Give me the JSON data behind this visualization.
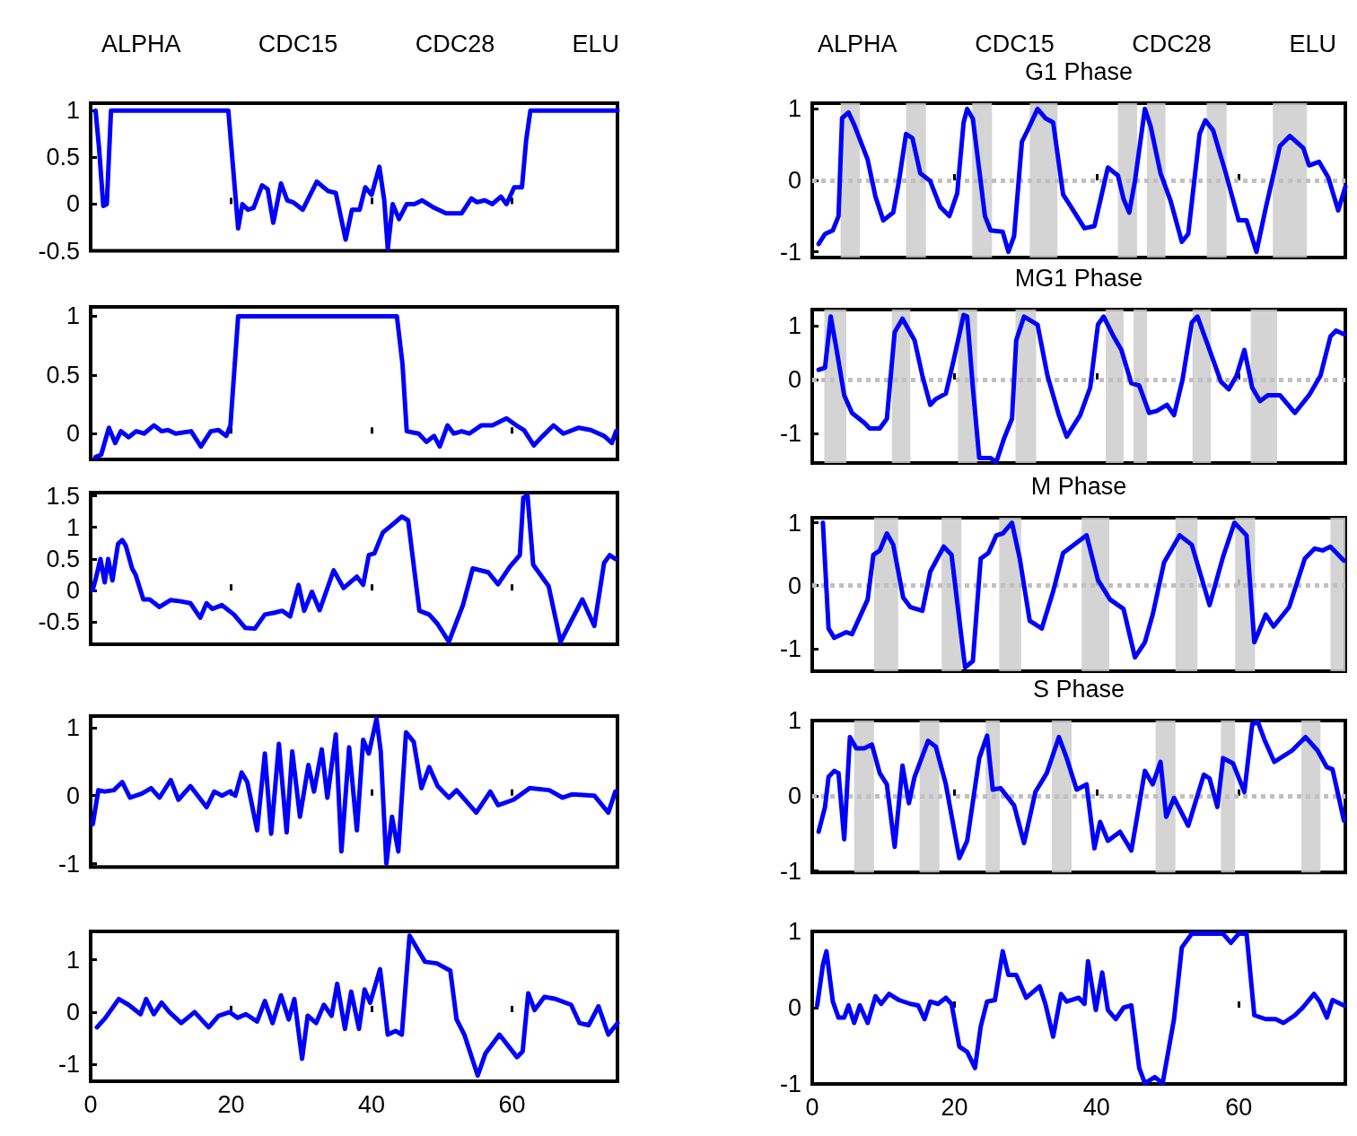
{
  "chart_data": [
    {
      "type": "line",
      "annotations": [
        "ALPHA",
        "CDC15",
        "CDC28",
        "ELU"
      ],
      "xlim": [
        0,
        75
      ],
      "xticks": [
        0,
        20,
        40,
        60
      ],
      "ylim": [
        -0.5,
        1.08
      ],
      "yticks": [
        -0.5,
        0,
        0.5,
        1
      ],
      "tick_labels": "y",
      "series": [
        {
          "color": "#0000ff",
          "x": [
            0.7,
            1.2,
            1.8,
            2.3,
            2.9,
            19.6,
            21.0,
            21.6,
            22.4,
            23.2,
            24.4,
            25.2,
            26.0,
            27.1,
            28.0,
            28.8,
            30.2,
            32.2,
            33.8,
            34.9,
            36.3,
            37.2,
            38.3,
            39.1,
            40.0,
            41.1,
            41.8,
            42.3,
            43.0,
            43.9,
            45.0,
            46.1,
            47.2,
            48.9,
            50.6,
            52.8,
            54.2,
            55.0,
            56.1,
            57.2,
            58.4,
            59.2,
            60.3,
            61.4,
            62.0,
            62.6,
            75
          ],
          "values": [
            1,
            0.6,
            -0.02,
            0,
            1,
            1,
            -0.26,
            0,
            -0.06,
            -0.04,
            0.2,
            0.16,
            -0.2,
            0.22,
            0.04,
            0.02,
            -0.06,
            0.24,
            0.14,
            0.12,
            -0.38,
            -0.06,
            -0.06,
            0.18,
            0.1,
            0.4,
            0.04,
            -0.48,
            0,
            -0.16,
            0,
            0,
            0.04,
            -0.04,
            -0.1,
            -0.1,
            0.06,
            0.02,
            0.04,
            0,
            0.08,
            0,
            0.18,
            0.18,
            0.68,
            1,
            1
          ]
        }
      ]
    },
    {
      "type": "line",
      "title": "G1 Phase",
      "annotations": [
        "ALPHA",
        "CDC15",
        "CDC28",
        "ELU"
      ],
      "xlim": [
        0,
        75
      ],
      "xticks": [
        0,
        20,
        40,
        60
      ],
      "ylim": [
        -1.08,
        1.08
      ],
      "yticks": [
        -1,
        0,
        1
      ],
      "tick_labels": "y",
      "ref_lines": [
        {
          "axis": "y",
          "value": 0,
          "color": "#c0c0c0",
          "line_style": "dotted"
        }
      ],
      "bands": [
        {
          "axis": "x",
          "from": 4,
          "to": 6.7,
          "color": "#cccccc"
        },
        {
          "axis": "x",
          "from": 13.2,
          "to": 16,
          "color": "#cccccc"
        },
        {
          "axis": "x",
          "from": 22.5,
          "to": 25.3,
          "color": "#cccccc"
        },
        {
          "axis": "x",
          "from": 30.6,
          "to": 34.5,
          "color": "#cccccc"
        },
        {
          "axis": "x",
          "from": 43,
          "to": 45.7,
          "color": "#cccccc"
        },
        {
          "axis": "x",
          "from": 47.1,
          "to": 49.7,
          "color": "#cccccc"
        },
        {
          "axis": "x",
          "from": 55.5,
          "to": 58.3,
          "color": "#cccccc"
        },
        {
          "axis": "x",
          "from": 64.8,
          "to": 69.6,
          "color": "#cccccc"
        }
      ],
      "series": [
        {
          "color": "#0000ff",
          "x": [
            0.9,
            1.8,
            2.9,
            3.7,
            4.2,
            5.1,
            5.9,
            7.8,
            8.9,
            10.0,
            11.4,
            12.2,
            13.2,
            14.1,
            15.2,
            16.6,
            18.0,
            19.3,
            20.4,
            21.3,
            21.8,
            22.6,
            24.3,
            25.1,
            26.8,
            27.6,
            28.4,
            29.5,
            30.3,
            31.7,
            32.8,
            33.9,
            35.3,
            36.4,
            38.3,
            39.7,
            41.6,
            43.0,
            43.8,
            44.6,
            45.4,
            46.8,
            47.6,
            49.0,
            50.4,
            52.0,
            52.9,
            54.5,
            55.3,
            56.4,
            58.1,
            60.0,
            61.1,
            62.5,
            63.8,
            65.8,
            67.2,
            69.1,
            69.9,
            71.3,
            72.6,
            74.0,
            75
          ],
          "values": [
            -0.89,
            -0.75,
            -0.7,
            -0.5,
            0.87,
            0.95,
            0.78,
            0.29,
            -0.23,
            -0.56,
            -0.45,
            -0.01,
            0.65,
            0.59,
            0.1,
            -0.01,
            -0.37,
            -0.5,
            -0.18,
            0.81,
            1,
            0.86,
            -0.5,
            -0.7,
            -0.72,
            -1,
            -0.78,
            0.54,
            0.7,
            1,
            0.87,
            0.81,
            -0.2,
            -0.37,
            -0.67,
            -0.64,
            0.18,
            0.07,
            -0.26,
            -0.45,
            -0.01,
            1,
            0.76,
            0.1,
            -0.28,
            -0.86,
            -0.75,
            0.65,
            0.84,
            0.7,
            0.13,
            -0.56,
            -0.56,
            -1,
            -0.39,
            0.48,
            0.62,
            0.45,
            0.21,
            0.26,
            0.04,
            -0.42,
            -0.09
          ]
        }
      ]
    },
    {
      "type": "line",
      "xlim": [
        0,
        75
      ],
      "xticks": [
        0,
        20,
        40,
        60
      ],
      "ylim": [
        -0.22,
        1.08
      ],
      "yticks": [
        0,
        0.5,
        1
      ],
      "tick_labels": "y",
      "series": [
        {
          "color": "#0000ff",
          "x": [
            0.7,
            1.5,
            2.6,
            3.5,
            4.3,
            5.4,
            6.5,
            7.6,
            9.0,
            10.1,
            11.0,
            12.1,
            14.3,
            15.7,
            17.1,
            18.2,
            19.3,
            19.9,
            21.0,
            43.6,
            44.4,
            45.0,
            46.7,
            47.8,
            48.9,
            49.7,
            50.8,
            51.7,
            52.8,
            53.9,
            55.6,
            57.2,
            59.2,
            60.6,
            61.7,
            63.1,
            64.2,
            65.9,
            67.3,
            69.5,
            71.2,
            73.1,
            74.2,
            74.8
          ],
          "values": [
            -0.2,
            -0.18,
            0.05,
            -0.08,
            0.02,
            -0.03,
            0.02,
            0,
            0.07,
            0.02,
            0.03,
            0,
            0.02,
            -0.11,
            0.02,
            0.03,
            -0.02,
            0.07,
            1,
            1,
            0.59,
            0.02,
            0,
            -0.07,
            -0.02,
            -0.11,
            0.07,
            0,
            0.02,
            0,
            0.07,
            0.07,
            0.13,
            0.07,
            0.03,
            -0.1,
            -0.03,
            0.07,
            0,
            0.05,
            0.03,
            -0.02,
            -0.08,
            0.02
          ]
        }
      ]
    },
    {
      "type": "line",
      "title": "MG1 Phase",
      "xlim": [
        0,
        75
      ],
      "xticks": [
        0,
        20,
        40,
        60
      ],
      "ylim": [
        -1.55,
        1.3
      ],
      "yticks": [
        -1,
        0,
        1
      ],
      "tick_labels": "y",
      "ref_lines": [
        {
          "axis": "y",
          "value": 0,
          "color": "#c0c0c0",
          "line_style": "dotted"
        }
      ],
      "bands": [
        {
          "axis": "x",
          "from": 1.7,
          "to": 4.8,
          "color": "#cccccc"
        },
        {
          "axis": "x",
          "from": 11.2,
          "to": 13.8,
          "color": "#cccccc"
        },
        {
          "axis": "x",
          "from": 20.5,
          "to": 23.2,
          "color": "#cccccc"
        },
        {
          "axis": "x",
          "from": 28.6,
          "to": 31.5,
          "color": "#cccccc"
        },
        {
          "axis": "x",
          "from": 41.3,
          "to": 43.8,
          "color": "#cccccc"
        },
        {
          "axis": "x",
          "from": 45.2,
          "to": 47.1,
          "color": "#cccccc"
        },
        {
          "axis": "x",
          "from": 53.5,
          "to": 56.1,
          "color": "#cccccc"
        },
        {
          "axis": "x",
          "from": 61.7,
          "to": 65.4,
          "color": "#cccccc"
        }
      ],
      "series": [
        {
          "color": "#0000ff",
          "x": [
            0.9,
            1.8,
            2.6,
            3.4,
            4.5,
            5.6,
            7.3,
            8.1,
            9.5,
            10.5,
            11.6,
            12.7,
            14.4,
            15.5,
            16.6,
            17.4,
            18.8,
            19.9,
            21.3,
            21.8,
            22.6,
            23.5,
            25.1,
            25.9,
            27.0,
            28.1,
            28.7,
            29.8,
            31.7,
            33.1,
            34.7,
            35.8,
            37.7,
            39.1,
            40.2,
            41.0,
            42.4,
            43.5,
            44.9,
            46.0,
            47.4,
            48.5,
            49.9,
            50.9,
            52.1,
            53.4,
            54.2,
            55.6,
            57.5,
            58.6,
            59.7,
            60.8,
            61.9,
            63.0,
            64.1,
            65.8,
            67.9,
            69.9,
            71.5,
            72.9,
            73.7,
            74.8
          ],
          "values": [
            0.18,
            0.22,
            1.17,
            0.58,
            -0.29,
            -0.62,
            -0.8,
            -0.91,
            -0.91,
            -0.73,
            0.88,
            1.13,
            0.73,
            0.07,
            -0.47,
            -0.36,
            -0.26,
            0.36,
            1.2,
            1.17,
            -0.15,
            -1.46,
            -1.46,
            -1.53,
            -1.09,
            -0.73,
            0.73,
            1.17,
            1.02,
            0.07,
            -0.66,
            -1.06,
            -0.66,
            -0.15,
            1.02,
            1.17,
            0.8,
            0.55,
            -0.07,
            -0.11,
            -0.62,
            -0.58,
            -0.47,
            -0.66,
            0,
            1.06,
            1.17,
            0.66,
            -0.04,
            -0.18,
            0.07,
            0.55,
            -0.15,
            -0.4,
            -0.29,
            -0.29,
            -0.62,
            -0.29,
            0.07,
            0.8,
            0.91,
            0.84
          ]
        }
      ]
    },
    {
      "type": "line",
      "xlim": [
        0,
        75
      ],
      "xticks": [
        0,
        20,
        40,
        60
      ],
      "ylim": [
        -0.85,
        1.55
      ],
      "yticks": [
        -0.5,
        0,
        0.5,
        1,
        1.5
      ],
      "tick_labels": "y",
      "series": [
        {
          "color": "#0000ff",
          "x": [
            0.3,
            0.8,
            1.4,
            2.0,
            2.5,
            3.1,
            3.9,
            4.5,
            5.0,
            5.9,
            6.4,
            7.5,
            8.4,
            9.8,
            11.4,
            12.8,
            14.2,
            15.6,
            16.5,
            17.3,
            18.7,
            20.4,
            22.0,
            23.4,
            24.8,
            26.2,
            27.3,
            28.4,
            29.6,
            30.4,
            31.5,
            32.6,
            34.6,
            36.0,
            37.9,
            38.8,
            39.6,
            40.4,
            41.6,
            42.7,
            44.3,
            45.2,
            46.8,
            48.2,
            49.4,
            51.0,
            53.0,
            54.4,
            56.6,
            58.0,
            59.7,
            61.1,
            61.6,
            62.2,
            63.0,
            65.2,
            66.9,
            70.0,
            71.7,
            73.1,
            73.9,
            74.7
          ],
          "values": [
            0.01,
            0.22,
            0.5,
            0.13,
            0.5,
            0.16,
            0.74,
            0.8,
            0.71,
            0.35,
            0.25,
            -0.14,
            -0.14,
            -0.26,
            -0.15,
            -0.17,
            -0.2,
            -0.43,
            -0.2,
            -0.29,
            -0.23,
            -0.38,
            -0.59,
            -0.6,
            -0.38,
            -0.35,
            -0.32,
            -0.41,
            0.09,
            -0.32,
            -0.02,
            -0.31,
            0.32,
            0.04,
            0.22,
            0.09,
            0.56,
            0.59,
            0.92,
            1.02,
            1.17,
            1.11,
            -0.32,
            -0.38,
            -0.53,
            -0.81,
            -0.23,
            0.35,
            0.29,
            0.1,
            0.38,
            0.56,
            1.47,
            1.5,
            0.41,
            0.07,
            -0.81,
            -0.14,
            -0.56,
            0.44,
            0.56,
            0.5
          ]
        }
      ]
    },
    {
      "type": "line",
      "title": "M Phase",
      "xlim": [
        0,
        75
      ],
      "xticks": [
        0,
        20,
        40,
        60
      ],
      "ylim": [
        -1.36,
        1.08
      ],
      "yticks": [
        -1,
        0,
        1
      ],
      "tick_labels": "y",
      "ref_lines": [
        {
          "axis": "y",
          "value": 0,
          "color": "#c0c0c0",
          "line_style": "dotted"
        }
      ],
      "bands": [
        {
          "axis": "x",
          "from": 8.7,
          "to": 12.1,
          "color": "#cccccc"
        },
        {
          "axis": "x",
          "from": 18.2,
          "to": 21,
          "color": "#cccccc"
        },
        {
          "axis": "x",
          "from": 26.3,
          "to": 29.4,
          "color": "#cccccc"
        },
        {
          "axis": "x",
          "from": 37.9,
          "to": 41.8,
          "color": "#cccccc"
        },
        {
          "axis": "x",
          "from": 51.1,
          "to": 54.2,
          "color": "#cccccc"
        },
        {
          "axis": "x",
          "from": 59.5,
          "to": 62.3,
          "color": "#cccccc"
        },
        {
          "axis": "x",
          "from": 72.9,
          "to": 75,
          "color": "#cccccc"
        }
      ],
      "series": [
        {
          "color": "#0000ff",
          "x": [
            1.5,
            2.3,
            3.1,
            4.8,
            5.6,
            7.8,
            8.6,
            9.5,
            10.5,
            11.4,
            12.8,
            13.8,
            15.5,
            16.6,
            18.5,
            19.6,
            21.5,
            22.6,
            23.7,
            24.8,
            25.9,
            26.8,
            28.1,
            29.2,
            30.6,
            32.3,
            33.9,
            35.3,
            38.6,
            40.2,
            41.9,
            43.8,
            45.4,
            46.8,
            47.9,
            49.5,
            51.7,
            53.4,
            55.9,
            57.8,
            59.4,
            61.1,
            62.2,
            63.8,
            64.9,
            67.1,
            69.3,
            70.7,
            71.8,
            72.9,
            74.8
          ],
          "values": [
            1,
            -0.68,
            -0.83,
            -0.74,
            -0.77,
            -0.22,
            0.49,
            0.56,
            0.83,
            0.65,
            -0.19,
            -0.34,
            -0.4,
            0.22,
            0.62,
            0.49,
            -1.3,
            -1.2,
            0.43,
            0.52,
            0.8,
            0.83,
            1,
            0.43,
            -0.56,
            -0.68,
            -0.09,
            0.52,
            0.8,
            0.09,
            -0.22,
            -0.37,
            -1.14,
            -0.9,
            -0.46,
            0.37,
            0.8,
            0.65,
            -0.31,
            0.46,
            1,
            0.8,
            -0.9,
            -0.46,
            -0.65,
            -0.34,
            0.43,
            0.59,
            0.56,
            0.62,
            0.4
          ]
        }
      ]
    },
    {
      "type": "line",
      "xlim": [
        0,
        75
      ],
      "xticks": [
        0,
        20,
        40,
        60
      ],
      "ylim": [
        -1.05,
        1.17
      ],
      "yticks": [
        -1,
        0,
        1
      ],
      "tick_labels": "y",
      "series": [
        {
          "color": "#0000ff",
          "x": [
            0.3,
            1.1,
            2.0,
            3.3,
            4.5,
            5.6,
            7.3,
            8.6,
            9.8,
            11.4,
            12.5,
            14.2,
            16.5,
            17.6,
            18.7,
            19.8,
            20.6,
            21.5,
            22.3,
            23.7,
            24.8,
            25.7,
            26.8,
            27.9,
            28.7,
            29.8,
            31.0,
            31.8,
            32.9,
            33.7,
            34.9,
            35.7,
            36.8,
            37.9,
            38.8,
            39.6,
            40.7,
            41.3,
            42.1,
            42.9,
            43.8,
            44.9,
            46.0,
            47.1,
            48.2,
            49.4,
            51.0,
            52.1,
            54.9,
            56.9,
            58.0,
            60.2,
            62.5,
            65.3,
            67.2,
            68.6,
            71.7,
            73.7,
            74.7
          ],
          "values": [
            -0.42,
            0.08,
            0.06,
            0.08,
            0.2,
            -0.03,
            0.03,
            0.11,
            -0.03,
            0.23,
            -0.06,
            0.14,
            -0.17,
            0.06,
            0,
            0.06,
            0,
            0.34,
            0.2,
            -0.51,
            0.62,
            -0.56,
            0.76,
            -0.54,
            0.65,
            -0.31,
            0.45,
            0.06,
            0.68,
            -0.03,
            0.9,
            -0.82,
            0.71,
            -0.51,
            0.82,
            0.62,
            1.13,
            0.65,
            -1,
            -0.31,
            -0.82,
            0.93,
            0.79,
            0.11,
            0.42,
            0.14,
            -0.03,
            0.08,
            -0.25,
            0.06,
            -0.14,
            -0.06,
            0.11,
            0.08,
            -0.03,
            0.02,
            0,
            -0.25,
            0.06
          ]
        }
      ]
    },
    {
      "type": "line",
      "title": "S Phase",
      "xlim": [
        0,
        75
      ],
      "xticks": [
        0,
        20,
        40,
        60
      ],
      "ylim": [
        -1.02,
        1
      ],
      "yticks": [
        -1,
        0,
        1
      ],
      "tick_labels": "y",
      "ref_lines": [
        {
          "axis": "y",
          "value": 0,
          "color": "#c0c0c0",
          "line_style": "dotted"
        }
      ],
      "bands": [
        {
          "axis": "x",
          "from": 5.9,
          "to": 8.7,
          "color": "#cccccc"
        },
        {
          "axis": "x",
          "from": 15.1,
          "to": 17.9,
          "color": "#cccccc"
        },
        {
          "axis": "x",
          "from": 24.4,
          "to": 26.4,
          "color": "#cccccc"
        },
        {
          "axis": "x",
          "from": 33.7,
          "to": 36.5,
          "color": "#cccccc"
        },
        {
          "axis": "x",
          "from": 48.3,
          "to": 51.1,
          "color": "#cccccc"
        },
        {
          "axis": "x",
          "from": 57.5,
          "to": 59.5,
          "color": "#cccccc"
        },
        {
          "axis": "x",
          "from": 68.8,
          "to": 71.5,
          "color": "#cccccc"
        }
      ],
      "series": [
        {
          "color": "#0000ff",
          "x": [
            0.9,
            1.8,
            2.3,
            3.1,
            3.7,
            4.5,
            5.3,
            6.2,
            7.3,
            8.4,
            9.5,
            10.5,
            11.6,
            12.7,
            13.6,
            14.4,
            16.3,
            17.4,
            18.8,
            20.7,
            21.8,
            23.5,
            24.6,
            25.4,
            26.5,
            28.4,
            29.8,
            31.4,
            33.0,
            34.7,
            35.8,
            37.2,
            38.6,
            39.7,
            40.5,
            41.6,
            43.3,
            44.9,
            46.8,
            47.9,
            49.0,
            49.8,
            50.9,
            52.9,
            55.1,
            55.9,
            57.0,
            57.8,
            59.2,
            60.8,
            61.9,
            62.7,
            63.6,
            65.0,
            67.5,
            69.4,
            71.1,
            72.4,
            73.2,
            74.8
          ],
          "values": [
            -0.48,
            -0.15,
            0.25,
            0.33,
            0.3,
            -0.58,
            0.78,
            0.63,
            0.63,
            0.68,
            0.3,
            0.15,
            -0.68,
            0.4,
            -0.1,
            0.25,
            0.73,
            0.65,
            0.15,
            -0.83,
            -0.6,
            0.5,
            0.8,
            0.08,
            0.1,
            -0.13,
            -0.63,
            0.05,
            0.3,
            0.78,
            0.5,
            0.08,
            0.15,
            -0.7,
            -0.35,
            -0.6,
            -0.48,
            -0.73,
            0.33,
            0.15,
            0.45,
            -0.28,
            -0.03,
            -0.4,
            0.28,
            0.23,
            -0.15,
            0.5,
            0.43,
            0.05,
            0.95,
            0.98,
            0.75,
            0.45,
            0.6,
            0.78,
            0.6,
            0.38,
            0.35,
            -0.33
          ]
        }
      ]
    },
    {
      "type": "line",
      "xlim": [
        0,
        75
      ],
      "xticks": [
        0,
        20,
        40,
        60
      ],
      "ylim": [
        -1.32,
        1.54
      ],
      "yticks": [
        -1,
        0,
        1
      ],
      "series": [
        {
          "color": "#0000ff",
          "x": [
            0.9,
            2.1,
            4.0,
            5.4,
            7.1,
            7.9,
            9.0,
            10.1,
            11.2,
            12.9,
            14.8,
            16.8,
            18.2,
            19.8,
            20.9,
            22.1,
            23.7,
            24.8,
            25.9,
            27.1,
            28.2,
            29.0,
            30.1,
            30.9,
            32.1,
            33.2,
            34.3,
            35.1,
            36.2,
            37.1,
            38.2,
            39.0,
            39.8,
            41.2,
            42.3,
            43.4,
            44.3,
            45.4,
            47.6,
            49.3,
            51.2,
            52.1,
            53.2,
            55.1,
            56.2,
            58.2,
            60.7,
            61.5,
            62.3,
            63.2,
            64.6,
            66.2,
            68.4,
            69.6,
            70.9,
            72.3,
            73.7,
            75
          ],
          "values": [
            -0.29,
            -0.11,
            0.25,
            0.14,
            -0.04,
            0.25,
            -0.04,
            0.18,
            0,
            -0.21,
            0,
            -0.29,
            -0.07,
            0,
            -0.11,
            -0.04,
            -0.18,
            0.21,
            -0.21,
            0.32,
            -0.14,
            0.25,
            -0.89,
            -0.07,
            -0.21,
            0.14,
            -0.07,
            0.54,
            -0.32,
            0.39,
            -0.32,
            0.43,
            0.18,
            0.82,
            -0.43,
            -0.36,
            -0.43,
            1.46,
            0.96,
            0.93,
            0.79,
            -0.14,
            -0.43,
            -1.21,
            -0.79,
            -0.43,
            -0.86,
            -0.75,
            0.36,
            0.04,
            0.29,
            0.25,
            0.14,
            -0.21,
            -0.25,
            0.11,
            -0.43,
            -0.21
          ]
        }
      ]
    },
    {
      "type": "line",
      "xlim": [
        0,
        75
      ],
      "xticks": [
        0,
        20,
        40,
        60
      ],
      "ylim": [
        -1,
        1
      ],
      "yticks": [
        -1,
        0,
        1
      ],
      "series": [
        {
          "color": "#0000ff",
          "x": [
            0.7,
            1.5,
            2.0,
            2.9,
            3.7,
            4.5,
            5.1,
            5.9,
            6.7,
            7.8,
            8.9,
            9.7,
            10.8,
            12.2,
            13.8,
            14.9,
            15.8,
            16.6,
            17.7,
            18.8,
            19.6,
            20.7,
            21.8,
            22.9,
            23.7,
            24.6,
            25.7,
            26.8,
            27.6,
            28.7,
            30.1,
            32.0,
            32.8,
            33.9,
            35.0,
            35.8,
            37.5,
            38.3,
            38.8,
            39.9,
            40.8,
            41.6,
            42.7,
            43.8,
            44.9,
            46.0,
            46.8,
            48.2,
            49.3,
            50.9,
            52.0,
            53.4,
            57.8,
            58.9,
            60.0,
            61.1,
            62.2,
            63.8,
            65.2,
            66.3,
            67.9,
            69.0,
            70.6,
            71.4,
            72.4,
            73.2,
            74.8
          ],
          "values": [
            0.03,
            0.56,
            0.74,
            0.08,
            -0.13,
            -0.13,
            0.03,
            -0.2,
            0.03,
            -0.2,
            0.15,
            0.05,
            0.18,
            0.1,
            0.05,
            0.03,
            -0.15,
            0.08,
            0.05,
            0.13,
            0.05,
            -0.51,
            -0.58,
            -0.79,
            -0.25,
            0.08,
            0.1,
            0.74,
            0.43,
            0.43,
            0.13,
            0.28,
            0.05,
            -0.38,
            0.18,
            0.08,
            0.13,
            0.05,
            0.61,
            -0.03,
            0.46,
            -0.03,
            -0.15,
            0,
            0.03,
            -0.79,
            -0.99,
            -0.91,
            -0.99,
            -0.15,
            0.79,
            0.97,
            0.97,
            0.85,
            0.97,
            0.97,
            -0.1,
            -0.15,
            -0.15,
            -0.2,
            -0.1,
            0,
            0.18,
            0.08,
            -0.13,
            0.1,
            0.03
          ]
        }
      ]
    }
  ]
}
